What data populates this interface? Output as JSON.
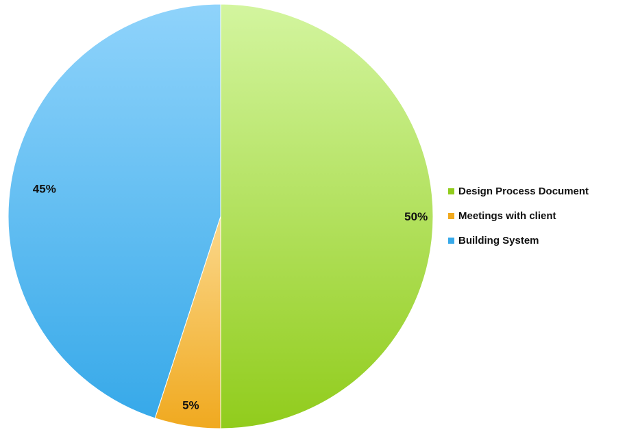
{
  "chart_data": {
    "type": "pie",
    "categories": [
      "Design Process Document",
      "Meetings with client",
      "Building System"
    ],
    "values": [
      50,
      5,
      45
    ],
    "data_labels": [
      "50%",
      "5%",
      "45%"
    ],
    "colors": {
      "Design Process Document": [
        "#d3f59f",
        "#91cc1c"
      ],
      "Meetings with client": [
        "#fbd88c",
        "#f0a91f"
      ],
      "Building System": [
        "#8fd3fb",
        "#37a9e9"
      ]
    },
    "legend_position": "right",
    "start_angle": "12 o'clock",
    "direction": "clockwise"
  }
}
